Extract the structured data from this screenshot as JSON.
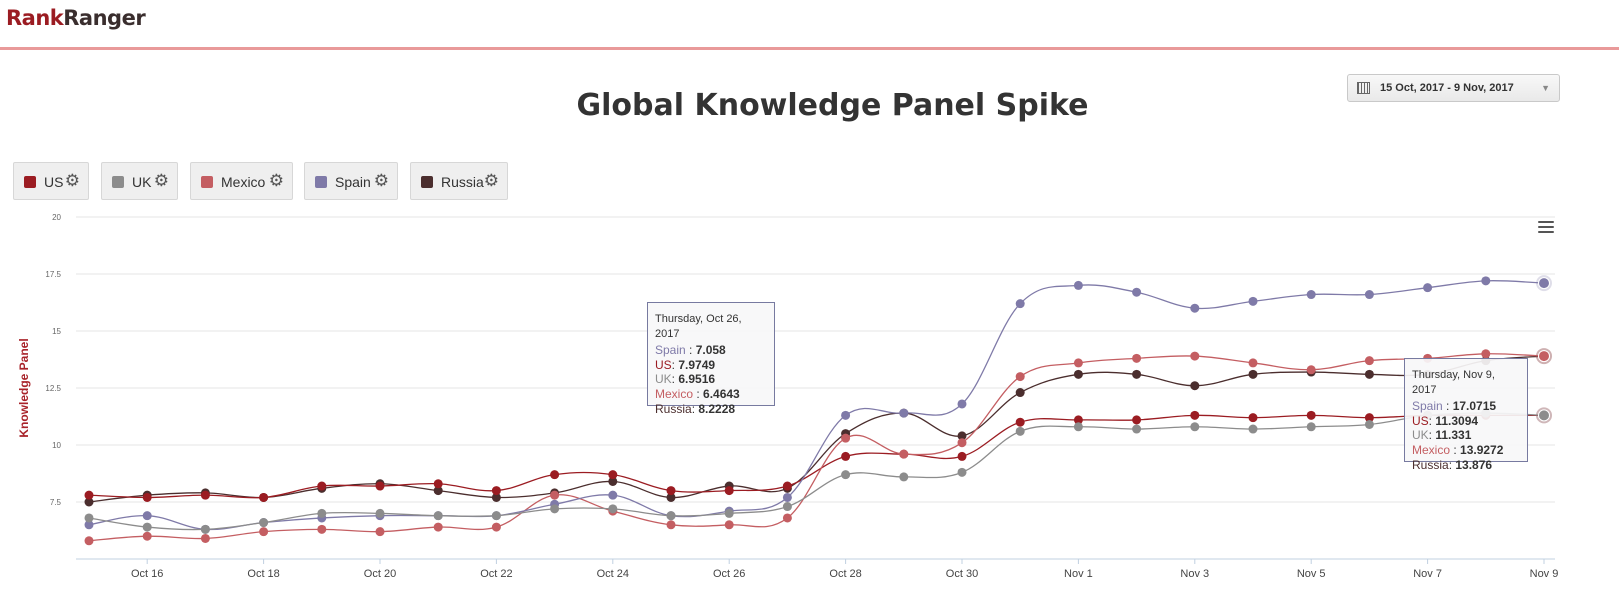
{
  "logo": {
    "part1": "Rank",
    "part2": "Ranger"
  },
  "title": "Global Knowledge Panel Spike",
  "date_range": "15 Oct, 2017 - 9 Nov, 2017",
  "legend": [
    {
      "label": "US",
      "color": "#9b1c22"
    },
    {
      "label": "UK",
      "color": "#8c8c8c"
    },
    {
      "label": "Mexico",
      "color": "#c45e62"
    },
    {
      "label": "Spain",
      "color": "#7f7aa8"
    },
    {
      "label": "Russia",
      "color": "#4b2e2e"
    }
  ],
  "tooltip1": {
    "header": "Thursday, Oct 26, 2017",
    "rows": [
      {
        "name": "Spain ",
        "value": "7.058",
        "color": "#7f7aa8"
      },
      {
        "name": "US",
        "value": "7.9749",
        "color": "#9b1c22"
      },
      {
        "name": "UK",
        "value": "6.9516",
        "color": "#8c8c8c"
      },
      {
        "name": "Mexico ",
        "value": "6.4643",
        "color": "#c45e62"
      },
      {
        "name": "Russia",
        "value": "8.2228",
        "color": "#4b2e2e"
      }
    ]
  },
  "tooltip2": {
    "header": "Thursday, Nov 9, 2017",
    "rows": [
      {
        "name": "Spain ",
        "value": "17.0715",
        "color": "#7f7aa8"
      },
      {
        "name": "US",
        "value": "11.3094",
        "color": "#9b1c22"
      },
      {
        "name": "UK",
        "value": "11.331",
        "color": "#8c8c8c"
      },
      {
        "name": "Mexico ",
        "value": "13.9272",
        "color": "#c45e62"
      },
      {
        "name": "Russia",
        "value": "13.876",
        "color": "#4b2e2e"
      }
    ]
  },
  "chart_data": {
    "type": "line",
    "title": "Global Knowledge Panel Spike",
    "ylabel": "Knowledge Panel",
    "xlabel": "",
    "ylim": [
      5,
      20
    ],
    "yticks": [
      7.5,
      10,
      12.5,
      15,
      17.5,
      20
    ],
    "x": [
      "Oct 15",
      "Oct 16",
      "Oct 17",
      "Oct 18",
      "Oct 19",
      "Oct 20",
      "Oct 21",
      "Oct 22",
      "Oct 23",
      "Oct 24",
      "Oct 25",
      "Oct 26",
      "Oct 27",
      "Oct 28",
      "Oct 29",
      "Oct 30",
      "Oct 31",
      "Nov 1",
      "Nov 2",
      "Nov 3",
      "Nov 4",
      "Nov 5",
      "Nov 6",
      "Nov 7",
      "Nov 8",
      "Nov 9"
    ],
    "xtick_labels": [
      "Oct 16",
      "Oct 18",
      "Oct 20",
      "Oct 22",
      "Oct 24",
      "Oct 26",
      "Oct 28",
      "Oct 30",
      "Nov 1",
      "Nov 3",
      "Nov 5",
      "Nov 7",
      "Nov 9"
    ],
    "grid": true,
    "series": [
      {
        "name": "Russia",
        "color": "#4b2e2e",
        "values": [
          7.5,
          7.8,
          7.9,
          7.7,
          8.1,
          8.3,
          8.0,
          7.7,
          7.9,
          8.4,
          7.7,
          8.2,
          8.1,
          10.5,
          11.4,
          10.4,
          12.3,
          13.1,
          13.1,
          12.6,
          13.1,
          13.2,
          13.1,
          13.1,
          13.7,
          13.9
        ]
      },
      {
        "name": "US",
        "color": "#9b1c22",
        "values": [
          7.8,
          7.7,
          7.8,
          7.7,
          8.2,
          8.2,
          8.3,
          8.0,
          8.7,
          8.7,
          8.0,
          8.0,
          8.2,
          9.5,
          9.6,
          9.5,
          11.0,
          11.1,
          11.1,
          11.3,
          11.2,
          11.3,
          11.2,
          11.3,
          11.3,
          11.3
        ]
      },
      {
        "name": "Mexico",
        "color": "#c45e62",
        "values": [
          5.8,
          6.0,
          5.9,
          6.2,
          6.3,
          6.2,
          6.4,
          6.4,
          7.8,
          7.1,
          6.5,
          6.5,
          6.8,
          10.3,
          9.6,
          10.1,
          13.0,
          13.6,
          13.8,
          13.9,
          13.6,
          13.3,
          13.7,
          13.8,
          14.0,
          13.9
        ]
      },
      {
        "name": "Spain",
        "color": "#7f7aa8",
        "values": [
          6.5,
          6.9,
          6.3,
          6.6,
          6.8,
          6.9,
          6.9,
          6.9,
          7.4,
          7.8,
          6.9,
          7.1,
          7.7,
          11.3,
          11.4,
          11.8,
          16.2,
          17.0,
          16.7,
          16.0,
          16.3,
          16.6,
          16.6,
          16.9,
          17.2,
          17.1
        ]
      },
      {
        "name": "UK",
        "color": "#8c8c8c",
        "values": [
          6.8,
          6.4,
          6.3,
          6.6,
          7.0,
          7.0,
          6.9,
          6.9,
          7.2,
          7.2,
          6.9,
          7.0,
          7.3,
          8.7,
          8.6,
          8.8,
          10.6,
          10.8,
          10.7,
          10.8,
          10.7,
          10.8,
          10.9,
          11.3,
          11.4,
          11.3
        ]
      }
    ]
  }
}
